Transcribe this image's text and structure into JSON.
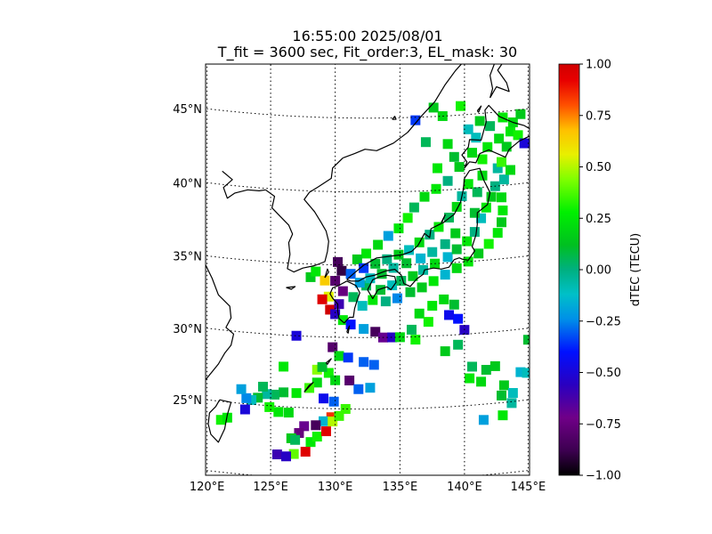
{
  "title_line1": "16:55:00 2025/08/01",
  "title_line2": "T_fit = 3600 sec, Fit_order:3, EL_mask: 30",
  "map": {
    "lon_range": [
      120,
      145
    ],
    "lat_range": [
      20,
      49
    ],
    "lon_ticks": [
      {
        "lon": 120,
        "label": "120°E"
      },
      {
        "lon": 125,
        "label": "125°E"
      },
      {
        "lon": 130,
        "label": "130°E"
      },
      {
        "lon": 135,
        "label": "135°E"
      },
      {
        "lon": 140,
        "label": "140°E"
      },
      {
        "lon": 145,
        "label": "145°E"
      }
    ],
    "lat_ticks": [
      {
        "lat": 25,
        "label": "25°N"
      },
      {
        "lat": 30,
        "label": "30°N"
      },
      {
        "lat": 35,
        "label": "35°N"
      },
      {
        "lat": 40,
        "label": "40°N"
      },
      {
        "lat": 45,
        "label": "45°N"
      }
    ],
    "gridlines": true,
    "coastline_color": "#000000"
  },
  "colorbar": {
    "label": "dTEC (TECU)",
    "range": [
      -1.0,
      1.0
    ],
    "colormap": "nipy_spectral",
    "ticks": [
      "1.00",
      "0.75",
      "0.50",
      "0.25",
      "0.00",
      "−0.25",
      "−0.50",
      "−0.75",
      "−1.00"
    ]
  },
  "chart_data": {
    "type": "heatmap",
    "title": "16:55:00 2025/08/01",
    "subtitle": "T_fit = 3600 sec, Fit_order:3, EL_mask: 30",
    "colorbar_label": "dTEC (TECU)",
    "value_range": [
      -1.0,
      1.0
    ],
    "points_lon_lat_dtec": [
      [
        130.2,
        35.2,
        -0.85
      ],
      [
        130.5,
        34.6,
        -0.9
      ],
      [
        130.0,
        33.9,
        -0.8
      ],
      [
        130.6,
        33.2,
        -0.75
      ],
      [
        129.5,
        32.8,
        0.55
      ],
      [
        129.0,
        32.6,
        0.95
      ],
      [
        129.6,
        31.9,
        1.0
      ],
      [
        130.3,
        32.3,
        -0.6
      ],
      [
        130.0,
        31.6,
        -0.55
      ],
      [
        130.6,
        31.2,
        0.25
      ],
      [
        131.2,
        30.9,
        -0.4
      ],
      [
        132.2,
        30.6,
        -0.2
      ],
      [
        133.1,
        30.4,
        -0.85
      ],
      [
        133.7,
        30.0,
        -0.7
      ],
      [
        134.4,
        30.0,
        -0.55
      ],
      [
        135.0,
        30.0,
        0.2
      ],
      [
        135.9,
        30.5,
        0.05
      ],
      [
        127.0,
        30.0,
        -0.5
      ],
      [
        129.8,
        29.3,
        -0.8
      ],
      [
        130.3,
        28.7,
        0.2
      ],
      [
        131.0,
        28.6,
        -0.35
      ],
      [
        132.2,
        28.3,
        -0.3
      ],
      [
        133.0,
        28.1,
        -0.3
      ],
      [
        131.1,
        27.0,
        -0.8
      ],
      [
        131.8,
        26.4,
        -0.3
      ],
      [
        132.7,
        26.5,
        -0.2
      ],
      [
        129.5,
        27.5,
        0.3
      ],
      [
        128.6,
        27.7,
        0.45
      ],
      [
        129.0,
        27.9,
        0.1
      ],
      [
        130.0,
        27.0,
        0.2
      ],
      [
        128.6,
        26.8,
        0.2
      ],
      [
        128.0,
        26.4,
        0.35
      ],
      [
        127.0,
        26.0,
        0.25
      ],
      [
        126.0,
        26.0,
        0.1
      ],
      [
        125.3,
        25.8,
        0.05
      ],
      [
        124.7,
        25.8,
        -0.05
      ],
      [
        124.0,
        25.5,
        0.1
      ],
      [
        123.5,
        25.3,
        -0.1
      ],
      [
        123.1,
        25.4,
        -0.25
      ],
      [
        123.0,
        24.6,
        -0.5
      ],
      [
        122.7,
        26.0,
        -0.2
      ],
      [
        124.4,
        26.3,
        0.05
      ],
      [
        126.4,
        24.6,
        0.2
      ],
      [
        125.6,
        24.6,
        0.25
      ],
      [
        124.9,
        24.9,
        0.3
      ],
      [
        126.0,
        27.8,
        0.25
      ],
      [
        129.1,
        25.7,
        -0.45
      ],
      [
        129.9,
        25.5,
        -0.3
      ],
      [
        130.8,
        25.0,
        0.35
      ],
      [
        129.7,
        24.4,
        0.85
      ],
      [
        129.1,
        24.1,
        -0.15
      ],
      [
        128.5,
        23.8,
        -0.85
      ],
      [
        127.6,
        23.7,
        -0.7
      ],
      [
        127.2,
        23.2,
        -0.75
      ],
      [
        126.6,
        22.8,
        0.15
      ],
      [
        126.9,
        22.7,
        0.05
      ],
      [
        128.1,
        22.6,
        0.25
      ],
      [
        128.6,
        23.0,
        0.3
      ],
      [
        129.3,
        23.4,
        0.95
      ],
      [
        129.8,
        24.1,
        0.5
      ],
      [
        130.3,
        24.5,
        0.35
      ],
      [
        126.8,
        21.7,
        0.4
      ],
      [
        127.7,
        21.9,
        0.95
      ],
      [
        125.5,
        21.6,
        -0.6
      ],
      [
        126.2,
        21.5,
        -0.55
      ],
      [
        121.1,
        23.7,
        0.3
      ],
      [
        121.6,
        23.9,
        0.25
      ],
      [
        128.1,
        34.1,
        0.15
      ],
      [
        128.5,
        34.5,
        0.25
      ],
      [
        129.2,
        33.9,
        0.65
      ],
      [
        132.4,
        33.6,
        0.05
      ],
      [
        133.5,
        33.3,
        0.1
      ],
      [
        134.4,
        33.6,
        -0.1
      ],
      [
        135.1,
        33.9,
        0.05
      ],
      [
        136.0,
        34.2,
        0.15
      ],
      [
        136.8,
        34.6,
        -0.05
      ],
      [
        137.7,
        35.0,
        0.2
      ],
      [
        138.7,
        35.4,
        -0.15
      ],
      [
        139.4,
        35.9,
        0.1
      ],
      [
        140.2,
        36.4,
        0.25
      ],
      [
        140.8,
        37.0,
        0.0
      ],
      [
        141.3,
        37.9,
        -0.1
      ],
      [
        141.7,
        38.6,
        0.25
      ],
      [
        142.1,
        39.3,
        0.15
      ],
      [
        141.0,
        39.7,
        0.05
      ],
      [
        140.3,
        40.3,
        0.25
      ],
      [
        141.4,
        40.8,
        0.2
      ],
      [
        142.6,
        41.2,
        -0.05
      ],
      [
        141.4,
        41.9,
        0.3
      ],
      [
        140.6,
        42.4,
        0.2
      ],
      [
        141.8,
        42.7,
        0.25
      ],
      [
        142.7,
        43.2,
        0.2
      ],
      [
        143.6,
        43.6,
        0.25
      ],
      [
        144.2,
        43.3,
        0.3
      ],
      [
        144.7,
        42.7,
        -0.5
      ],
      [
        143.3,
        42.6,
        0.15
      ],
      [
        142.9,
        41.6,
        0.35
      ],
      [
        139.6,
        41.5,
        0.15
      ],
      [
        138.7,
        40.6,
        0.0
      ],
      [
        137.8,
        40.1,
        0.25
      ],
      [
        136.9,
        39.6,
        0.2
      ],
      [
        136.1,
        38.9,
        0.05
      ],
      [
        135.6,
        38.2,
        0.3
      ],
      [
        134.9,
        37.5,
        0.25
      ],
      [
        134.1,
        37.0,
        -0.2
      ],
      [
        133.3,
        36.4,
        0.2
      ],
      [
        132.4,
        35.8,
        0.25
      ],
      [
        131.7,
        35.4,
        0.15
      ],
      [
        131.2,
        34.4,
        -0.3
      ],
      [
        132.2,
        34.8,
        -0.35
      ],
      [
        133.1,
        35.1,
        0.1
      ],
      [
        134.0,
        35.4,
        0.0
      ],
      [
        134.9,
        35.7,
        0.15
      ],
      [
        135.7,
        36.0,
        -0.1
      ],
      [
        136.5,
        36.5,
        0.2
      ],
      [
        137.3,
        37.0,
        0.0
      ],
      [
        138.0,
        37.5,
        0.25
      ],
      [
        138.8,
        38.1,
        0.05
      ],
      [
        139.4,
        38.8,
        0.2
      ],
      [
        139.8,
        39.5,
        -0.05
      ],
      [
        140.8,
        38.3,
        0.1
      ],
      [
        139.3,
        37.0,
        0.15
      ],
      [
        138.5,
        36.3,
        0.0
      ],
      [
        137.5,
        35.8,
        -0.05
      ],
      [
        136.6,
        35.4,
        -0.15
      ],
      [
        135.5,
        35.1,
        0.1
      ],
      [
        134.5,
        34.8,
        -0.05
      ],
      [
        133.6,
        34.4,
        0.1
      ],
      [
        132.7,
        34.1,
        -0.1
      ],
      [
        131.9,
        33.8,
        -0.2
      ],
      [
        131.4,
        32.8,
        0.05
      ],
      [
        132.1,
        32.2,
        -0.1
      ],
      [
        132.9,
        32.6,
        0.25
      ],
      [
        133.9,
        32.5,
        0.0
      ],
      [
        134.8,
        32.7,
        -0.25
      ],
      [
        135.8,
        33.1,
        0.1
      ],
      [
        136.7,
        33.4,
        0.15
      ],
      [
        137.6,
        33.8,
        0.25
      ],
      [
        138.5,
        34.2,
        -0.15
      ],
      [
        139.4,
        34.6,
        0.2
      ],
      [
        140.3,
        35.0,
        0.25
      ],
      [
        141.1,
        35.5,
        0.15
      ],
      [
        141.9,
        36.1,
        0.3
      ],
      [
        142.6,
        36.8,
        0.25
      ],
      [
        142.9,
        37.5,
        0.15
      ],
      [
        143.0,
        38.3,
        0.25
      ],
      [
        142.9,
        39.2,
        0.2
      ],
      [
        142.4,
        40.0,
        0.0
      ],
      [
        143.1,
        40.4,
        -0.05
      ],
      [
        143.6,
        41.0,
        0.2
      ],
      [
        143.8,
        44.2,
        0.2
      ],
      [
        144.4,
        44.7,
        0.15
      ],
      [
        143.0,
        44.6,
        0.25
      ],
      [
        142.0,
        44.1,
        0.05
      ],
      [
        141.2,
        44.5,
        0.15
      ],
      [
        140.3,
        44.0,
        -0.1
      ],
      [
        139.7,
        45.6,
        0.3
      ],
      [
        138.3,
        45.0,
        0.2
      ],
      [
        137.6,
        45.6,
        0.15
      ],
      [
        136.2,
        44.8,
        -0.35
      ],
      [
        137.0,
        43.3,
        0.05
      ],
      [
        138.7,
        43.1,
        0.2
      ],
      [
        139.2,
        42.2,
        0.1
      ],
      [
        137.9,
        41.5,
        0.25
      ],
      [
        140.9,
        43.4,
        -0.1
      ],
      [
        136.5,
        31.6,
        0.2
      ],
      [
        137.5,
        32.1,
        0.25
      ],
      [
        138.4,
        32.5,
        0.2
      ],
      [
        139.2,
        32.1,
        0.1
      ],
      [
        139.5,
        31.1,
        -0.4
      ],
      [
        138.8,
        31.4,
        -0.45
      ],
      [
        140.0,
        30.3,
        -0.55
      ],
      [
        137.2,
        31.0,
        0.3
      ],
      [
        136.2,
        29.8,
        0.3
      ],
      [
        139.5,
        29.3,
        0.05
      ],
      [
        138.5,
        28.9,
        0.15
      ],
      [
        140.6,
        27.7,
        0.05
      ],
      [
        141.7,
        27.4,
        0.1
      ],
      [
        142.4,
        27.6,
        0.15
      ],
      [
        140.4,
        26.9,
        0.25
      ],
      [
        143.1,
        26.2,
        0.15
      ],
      [
        142.9,
        25.5,
        0.1
      ],
      [
        143.7,
        24.9,
        -0.05
      ],
      [
        144.4,
        27.0,
        -0.15
      ],
      [
        144.9,
        26.9,
        -0.1
      ],
      [
        145.0,
        29.2,
        0.1
      ],
      [
        143.0,
        24.1,
        0.25
      ],
      [
        141.5,
        23.9,
        -0.2
      ],
      [
        143.8,
        25.6,
        -0.1
      ],
      [
        141.3,
        26.6,
        0.2
      ]
    ]
  }
}
